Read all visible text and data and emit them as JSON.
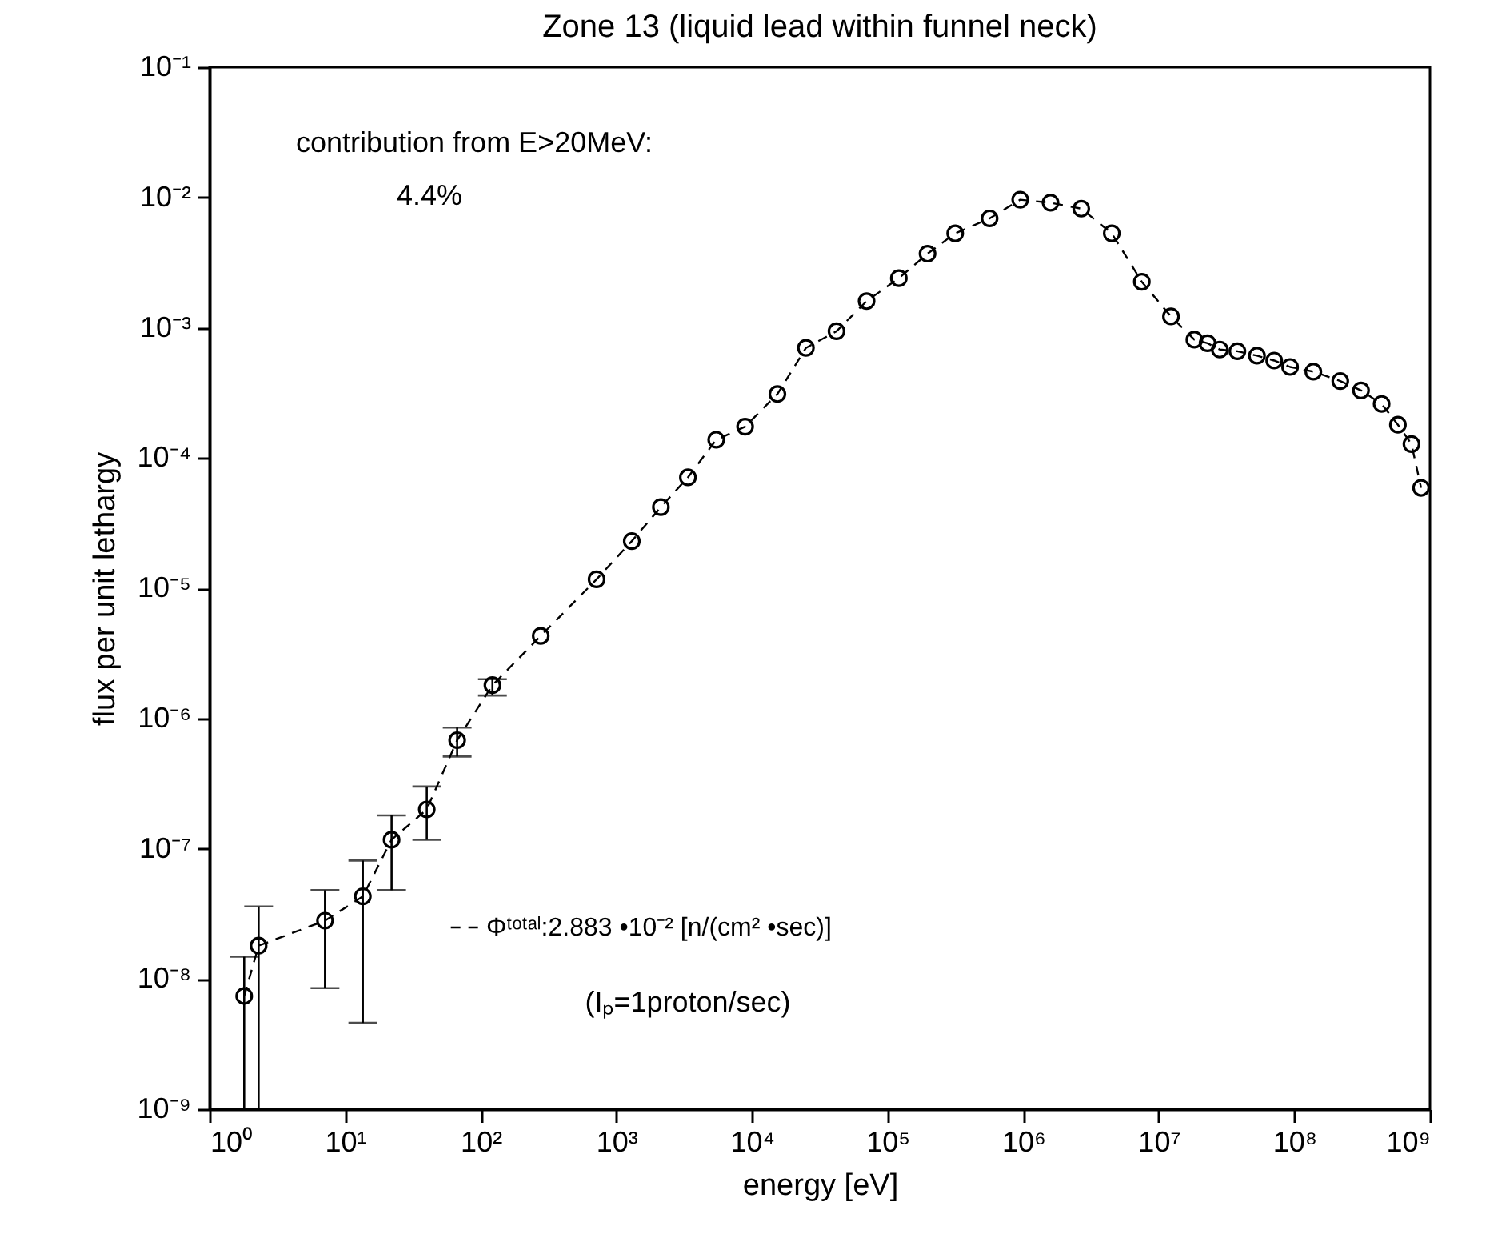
{
  "chart_data": {
    "type": "line",
    "title": "Zone 13 (liquid lead within funnel neck)",
    "xlabel": "energy [eV]",
    "ylabel": "flux per unit lethargy",
    "log": "xy",
    "grid": false,
    "marker": "circle",
    "line_style": "dashed",
    "legend": "bottom",
    "annotations": [
      "contribution from E>20MeV:",
      "4.4%",
      "(Iₚ=1proton/sec)"
    ],
    "xlim": [
      1,
      1000000000
    ],
    "ylim": [
      1e-09,
      0.1
    ],
    "xticks": [
      {
        "value": 1,
        "label": "10⁰"
      },
      {
        "value": 10,
        "label": "10¹"
      },
      {
        "value": 100,
        "label": "10²"
      },
      {
        "value": 1000,
        "label": "10³"
      },
      {
        "value": 10000,
        "label": "10⁴"
      },
      {
        "value": 100000,
        "label": "10⁵"
      },
      {
        "value": 1000000,
        "label": "10⁶"
      },
      {
        "value": 10000000,
        "label": "10⁷"
      },
      {
        "value": 100000000,
        "label": "10⁸"
      },
      {
        "value": 1000000000,
        "label": "10⁹"
      }
    ],
    "yticks": [
      {
        "value": 1e-09,
        "label": "10⁻⁹"
      },
      {
        "value": 1e-08,
        "label": "10⁻⁸"
      },
      {
        "value": 1e-07,
        "label": "10⁻⁷"
      },
      {
        "value": 1e-06,
        "label": "10⁻⁶"
      },
      {
        "value": 1e-05,
        "label": "10⁻⁵"
      },
      {
        "value": 0.0001,
        "label": "10⁻⁴"
      },
      {
        "value": 0.001,
        "label": "10⁻³"
      },
      {
        "value": 0.01,
        "label": "10⁻²"
      },
      {
        "value": 0.1,
        "label": "10⁻¹"
      }
    ],
    "series": [
      {
        "name": "Φᵗᵒᵗᵃˡ:2.883 •10⁻² [n/(cm² •sec)]",
        "color": "#000000",
        "x": [
          1.8,
          2.3,
          7.1,
          13.5,
          22,
          40,
          67,
          122,
          277,
          715,
          1300,
          2130,
          3370,
          5450,
          8900,
          15400,
          25000,
          42000,
          70000,
          121000,
          197000,
          315000,
          565000,
          950000,
          1590000,
          2680000,
          4500000,
          7500000,
          12300000,
          18300000,
          22900000,
          28200000,
          38000000,
          53000000,
          71000000,
          93000000,
          138000000,
          218000000,
          310000000,
          440000000,
          580000000,
          730000000,
          860000000
        ],
        "values": [
          7.4e-09,
          1.8e-08,
          2.8e-08,
          4.3e-08,
          1.17e-07,
          2e-07,
          6.8e-07,
          1.8e-06,
          4.3e-06,
          1.17e-05,
          2.3e-05,
          4.2e-05,
          7.1e-05,
          0.000138,
          0.000174,
          0.00031,
          0.0007,
          0.00094,
          0.0016,
          0.0024,
          0.0037,
          0.0053,
          0.0069,
          0.0096,
          0.0091,
          0.0082,
          0.0053,
          0.00225,
          0.00122,
          0.00081,
          0.00076,
          0.00068,
          0.00066,
          0.00061,
          0.00056,
          0.0005,
          0.00046,
          0.00039,
          0.00033,
          0.00026,
          0.00018,
          0.000128,
          5.9e-05
        ],
        "errors": [
          [
            1e-09,
            1.48e-08
          ],
          [
            1e-09,
            3.6e-08
          ],
          [
            8.5e-09,
            4.8e-08
          ],
          [
            4.6e-09,
            8.1e-08
          ],
          [
            4.8e-08,
            1.8e-07
          ],
          [
            1.17e-07,
            3e-07
          ],
          [
            5.1e-07,
            8.5e-07
          ],
          [
            1.5e-06,
            2e-06
          ],
          null,
          null,
          null,
          null,
          null,
          null,
          null,
          null,
          null,
          null,
          null,
          null,
          null,
          null,
          null,
          null,
          null,
          null,
          null,
          null,
          null,
          null,
          null,
          null,
          null,
          null,
          null,
          null,
          null,
          null,
          null,
          null,
          null,
          null,
          null
        ]
      }
    ]
  }
}
